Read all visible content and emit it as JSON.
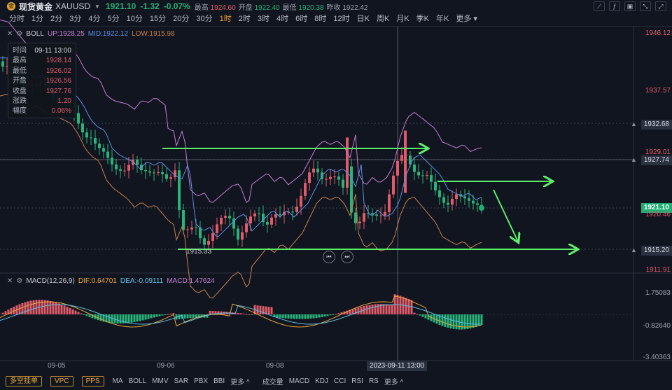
{
  "header": {
    "logo": "金",
    "name": "现货黄金",
    "symbol": "XAUUSD",
    "price": "1921.10",
    "change": "-1.32",
    "change_pct": "-0.07%",
    "high_label": "最高",
    "high": "1924.60",
    "open_label": "开盘",
    "open": "1922.40",
    "low_label": "最低",
    "low": "1920.38",
    "prev_label": "昨收",
    "prev": "1922.42"
  },
  "periods": [
    "分时",
    "1分",
    "2分",
    "3分",
    "4分",
    "5分",
    "10分",
    "15分",
    "20分",
    "30分",
    "1时",
    "2时",
    "3时",
    "4时",
    "6时",
    "8时",
    "12时",
    "日K",
    "周K",
    "月K",
    "季K",
    "年K",
    "更多"
  ],
  "active_period": "1时",
  "boll": {
    "name": "BOLL",
    "up": "UP:1928.25",
    "mid": "MID:1922.12",
    "low": "LOW:1915.98"
  },
  "macd": {
    "name": "MACD(12,26,9)",
    "dif": "DIF:0.64701",
    "dea": "DEA:-0.09111",
    "macd": "MACD:1.47624"
  },
  "info": {
    "rows": [
      {
        "k": "时间",
        "v": "09-11 13:00"
      },
      {
        "k": "最高",
        "v": "1928.14"
      },
      {
        "k": "最低",
        "v": "1926.02"
      },
      {
        "k": "开盘",
        "v": "1926.56"
      },
      {
        "k": "收盘",
        "v": "1927.76"
      },
      {
        "k": "涨跌",
        "v": "1.20"
      },
      {
        "k": "幅度",
        "v": "0.06%"
      }
    ]
  },
  "price_axis": {
    "p1": "1946.12",
    "p2": "1937.57",
    "p3": "1932.68",
    "p4": "1929.01",
    "p5": "1927.74",
    "p6": "1920.46",
    "p7": "1921.10",
    "p8": "1915.20",
    "p9": "1911.91",
    "low_marker": "1915.33"
  },
  "macd_axis": {
    "a1": "1.75083",
    "a2": "-0.82640",
    "a3": "-3.40363"
  },
  "dates": {
    "d1": "09-05",
    "d2": "09-06",
    "d3": "09-08",
    "cursor": "2023-09-11 13:00"
  },
  "bottom": {
    "pills": [
      "多空挂单",
      "VPC",
      "PPS"
    ],
    "main_ind": [
      "MA",
      "BOLL",
      "MMV",
      "SAR",
      "PBX",
      "BBI",
      "更多 ^"
    ],
    "sub_ind": [
      "成交量",
      "MACD",
      "KDJ",
      "CCI",
      "RSI",
      "RS",
      "更多 ^"
    ]
  },
  "colors": {
    "up": "#e05a6a",
    "down": "#27b37a",
    "boll_up": "#c77dd4",
    "boll_mid": "#5b8fe6",
    "boll_low": "#c8814a",
    "annot": "#5cf06a"
  }
}
